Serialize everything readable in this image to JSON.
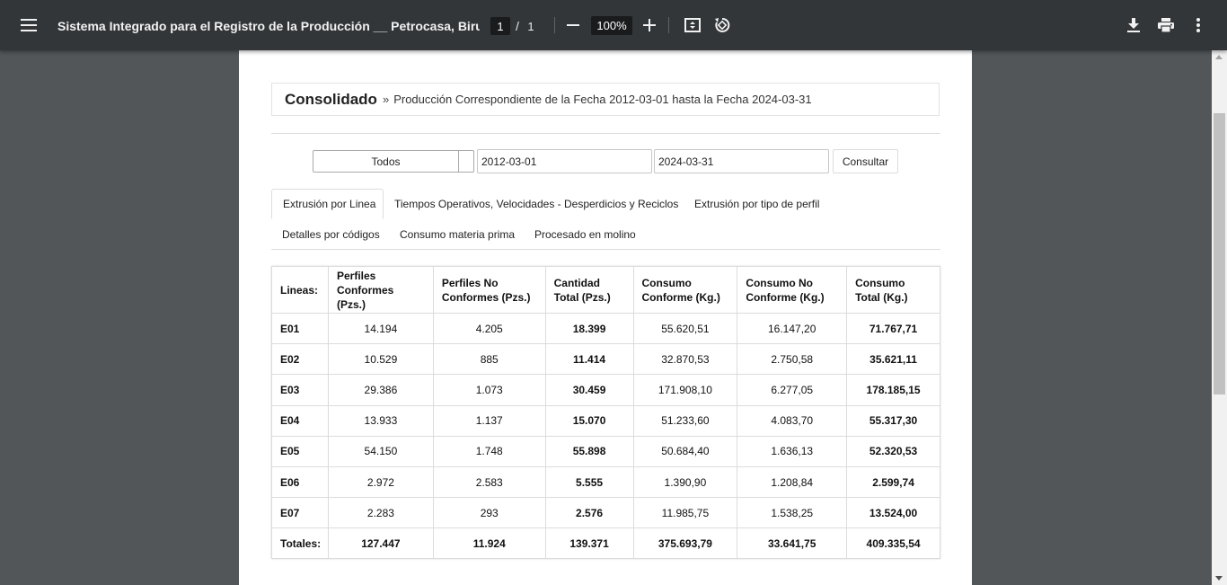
{
  "viewer": {
    "doc_title": "Sistema Integrado para el Registro de la Producción __ Petrocasa, Birua...",
    "current_page": "1",
    "page_separator": "/",
    "total_pages": "1",
    "zoom": "100%",
    "icons": [
      "menu-icon",
      "zoom-out-icon",
      "zoom-in-icon",
      "fit-page-icon",
      "rotate-icon",
      "download-icon",
      "print-icon",
      "more-vert-icon"
    ]
  },
  "header": {
    "title": "Consolidado",
    "separator": "»",
    "subtitle": "Producción Correspondiente de la Fecha 2012-03-01 hasta la Fecha 2024-03-31"
  },
  "filters": {
    "select_value": "Todos",
    "date_from": "2012-03-01",
    "date_to": "2024-03-31",
    "submit_label": "Consultar"
  },
  "tabs": [
    {
      "label": "Extrusión por Linea",
      "active": true
    },
    {
      "label": "Tiempos Operativos, Velocidades - Desperdicios y Reciclos",
      "active": false
    },
    {
      "label": "Extrusión por tipo de perfil",
      "active": false
    },
    {
      "label": "Detalles por códigos",
      "active": false
    },
    {
      "label": "Consumo materia prima",
      "active": false
    },
    {
      "label": "Procesado en molino",
      "active": false
    }
  ],
  "table": {
    "headers": [
      "Lineas:",
      "Perfiles Conformes (Pzs.)",
      "Perfiles No Conformes (Pzs.)",
      "Cantidad Total (Pzs.)",
      "Consumo Conforme (Kg.)",
      "Consumo No Conforme (Kg.)",
      "Consumo Total (Kg.)"
    ],
    "rows": [
      [
        "E01",
        "14.194",
        "4.205",
        "18.399",
        "55.620,51",
        "16.147,20",
        "71.767,71"
      ],
      [
        "E02",
        "10.529",
        "885",
        "11.414",
        "32.870,53",
        "2.750,58",
        "35.621,11"
      ],
      [
        "E03",
        "29.386",
        "1.073",
        "30.459",
        "171.908,10",
        "6.277,05",
        "178.185,15"
      ],
      [
        "E04",
        "13.933",
        "1.137",
        "15.070",
        "51.233,60",
        "4.083,70",
        "55.317,30"
      ],
      [
        "E05",
        "54.150",
        "1.748",
        "55.898",
        "50.684,40",
        "1.636,13",
        "52.320,53"
      ],
      [
        "E06",
        "2.972",
        "2.583",
        "5.555",
        "1.390,90",
        "1.208,84",
        "2.599,74"
      ],
      [
        "E07",
        "2.283",
        "293",
        "2.576",
        "11.985,75",
        "1.538,25",
        "13.524,00"
      ]
    ],
    "totals": [
      "Totales:",
      "127.447",
      "11.924",
      "139.371",
      "375.693,79",
      "33.641,75",
      "409.335,54"
    ]
  }
}
